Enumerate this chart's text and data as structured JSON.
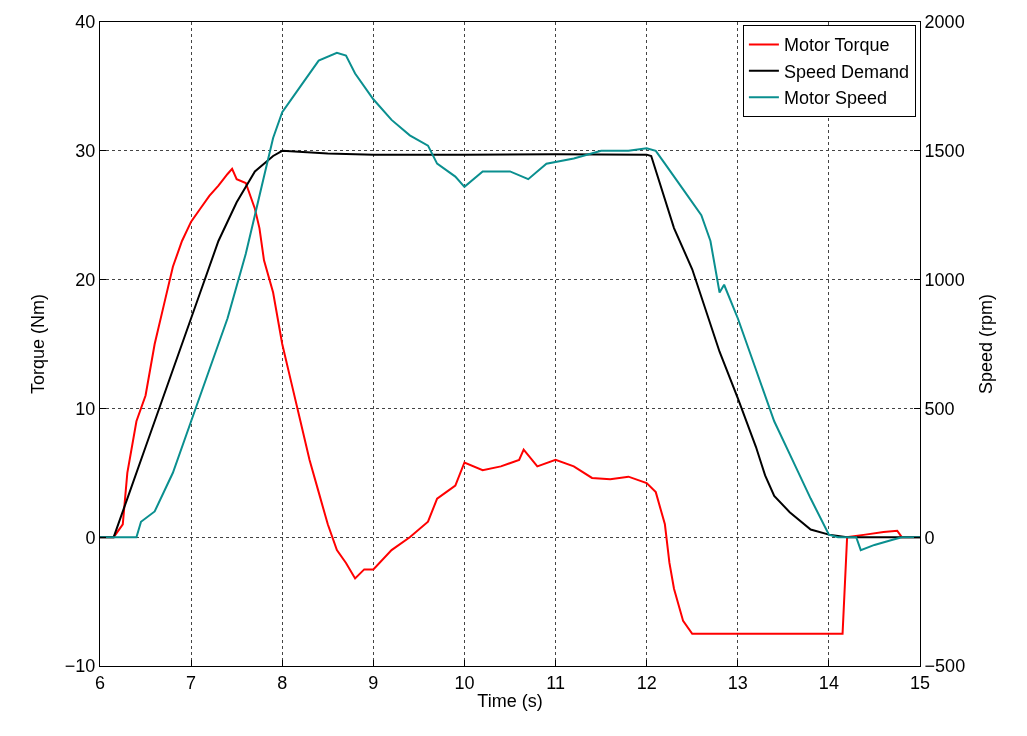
{
  "chart_data": {
    "type": "line",
    "xlabel": "Time (s)",
    "ylabel": "Torque (Nm)",
    "y2label": "Speed (rpm)",
    "xlim": [
      6,
      15
    ],
    "xticks": [
      6,
      7,
      8,
      9,
      10,
      11,
      12,
      13,
      14,
      15
    ],
    "ylim": [
      -10,
      40
    ],
    "yticks": [
      -10,
      0,
      10,
      20,
      30,
      40
    ],
    "y2lim": [
      -500,
      2000
    ],
    "y2ticks": [
      -500,
      0,
      500,
      1000,
      1500,
      2000
    ],
    "grid": true,
    "legend": "top right",
    "line_style": "solid",
    "marker": "none",
    "series": [
      {
        "name": "Motor Torque",
        "color": "#ff0000",
        "x": [
          6.0,
          6.15,
          6.25,
          6.3,
          6.4,
          6.5,
          6.6,
          6.7,
          6.8,
          6.9,
          7.0,
          7.1,
          7.2,
          7.3,
          7.4,
          7.45,
          7.5,
          7.6,
          7.7,
          7.75,
          7.8,
          7.9,
          8.0,
          8.1,
          8.2,
          8.3,
          8.4,
          8.5,
          8.6,
          8.7,
          8.8,
          8.9,
          9.0,
          9.2,
          9.4,
          9.6,
          9.7,
          9.8,
          9.9,
          10.0,
          10.2,
          10.4,
          10.6,
          10.65,
          10.8,
          11.0,
          11.2,
          11.4,
          11.6,
          11.8,
          12.0,
          12.1,
          12.2,
          12.25,
          12.3,
          12.4,
          12.5,
          14.15,
          14.2,
          14.4,
          14.6,
          14.75,
          14.8,
          15.0
        ],
        "values": [
          0,
          0,
          1,
          5,
          9,
          11,
          15,
          18,
          21,
          23,
          24.5,
          25.5,
          26.5,
          27.3,
          28.2,
          28.6,
          27.8,
          27.5,
          25.5,
          24,
          21.5,
          19,
          15,
          12,
          9,
          6,
          3.5,
          1,
          -1,
          -2,
          -3.2,
          -2.5,
          -2.5,
          -1,
          0,
          1.2,
          3,
          3.5,
          4,
          5.8,
          5.2,
          5.5,
          6,
          6.8,
          5.5,
          6,
          5.5,
          4.6,
          4.5,
          4.7,
          4.2,
          3.5,
          1,
          -2,
          -4,
          -6.5,
          -7.5,
          -7.5,
          0,
          0.2,
          0.4,
          0.5,
          0,
          0
        ]
      },
      {
        "name": "Speed Demand",
        "color": "#000000",
        "axis": "y2",
        "x": [
          6.0,
          6.15,
          6.3,
          6.5,
          6.7,
          6.9,
          7.1,
          7.3,
          7.5,
          7.7,
          7.9,
          8.0,
          8.5,
          9.0,
          10.0,
          11.0,
          12.0,
          12.05,
          12.3,
          12.5,
          12.8,
          13.0,
          13.2,
          13.3,
          13.4,
          13.57,
          13.8,
          14.0,
          14.2,
          15.0
        ],
        "values": [
          0,
          0,
          150,
          350,
          550,
          750,
          950,
          1150,
          1300,
          1420,
          1480,
          1500,
          1490,
          1485,
          1485,
          1487,
          1485,
          1480,
          1200,
          1040,
          720,
          540,
          350,
          240,
          160,
          97,
          30,
          10,
          0,
          0
        ]
      },
      {
        "name": "Motor Speed",
        "color": "#0a8f8f",
        "axis": "y2",
        "x": [
          6.0,
          6.4,
          6.45,
          6.6,
          6.8,
          7.0,
          7.2,
          7.4,
          7.6,
          7.7,
          7.8,
          7.9,
          8.0,
          8.2,
          8.4,
          8.6,
          8.7,
          8.8,
          9.0,
          9.2,
          9.4,
          9.6,
          9.7,
          9.9,
          10.0,
          10.2,
          10.5,
          10.7,
          10.9,
          11.2,
          11.5,
          11.8,
          12.0,
          12.1,
          12.2,
          12.4,
          12.6,
          12.7,
          12.8,
          12.85,
          13.0,
          13.2,
          13.4,
          13.6,
          13.8,
          14.0,
          14.1,
          14.3,
          14.35,
          14.5,
          14.7,
          14.8,
          15.0
        ],
        "values": [
          0,
          0,
          60,
          100,
          250,
          450,
          650,
          850,
          1100,
          1250,
          1400,
          1550,
          1650,
          1750,
          1850,
          1880,
          1870,
          1800,
          1700,
          1620,
          1560,
          1520,
          1450,
          1400,
          1360,
          1420,
          1420,
          1390,
          1450,
          1470,
          1500,
          1500,
          1510,
          1500,
          1450,
          1350,
          1250,
          1150,
          950,
          980,
          850,
          650,
          450,
          300,
          150,
          10,
          0,
          0,
          -50,
          -30,
          -10,
          0,
          0
        ]
      }
    ]
  }
}
